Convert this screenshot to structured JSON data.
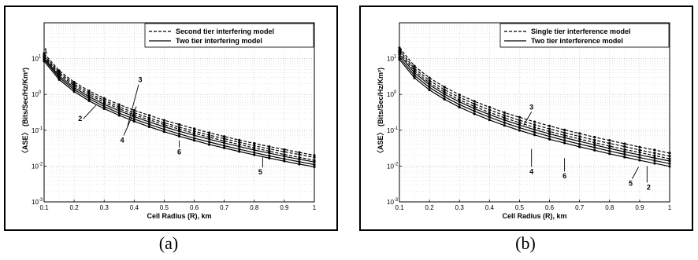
{
  "chart_data": [
    {
      "type": "line",
      "panel_caption": "(a)",
      "xlabel": "Cell Radius (R), km",
      "ylabel": "〈ASE〉 (Bits/Sec/Hz/Km²)",
      "xlim": [
        0.1,
        1
      ],
      "ylim": [
        0.001,
        100
      ],
      "yscale": "log",
      "grid": true,
      "legend_position": "top-right",
      "x_ticks": [
        "0.1",
        "0.2",
        "0.3",
        "0.4",
        "0.5",
        "0.6",
        "0.7",
        "0.8",
        "0.9",
        "1"
      ],
      "y_ticks": [
        {
          "base": "10",
          "exp": "-3"
        },
        {
          "base": "10",
          "exp": "-2"
        },
        {
          "base": "10",
          "exp": "-1"
        },
        {
          "base": "10",
          "exp": "0"
        },
        {
          "base": "10",
          "exp": "1"
        }
      ],
      "legend": [
        {
          "label": "Second tier interfering model",
          "style": "dashed"
        },
        {
          "label": "Two tier interfering model",
          "style": "solid"
        }
      ],
      "x": [
        0.1,
        0.15,
        0.2,
        0.25,
        0.3,
        0.35,
        0.4,
        0.45,
        0.5,
        0.55,
        0.6,
        0.65,
        0.7,
        0.75,
        0.8,
        0.85,
        0.9,
        0.95,
        1.0
      ],
      "series": [
        {
          "style": "dashed",
          "values": [
            14,
            4.6,
            2.2,
            1.25,
            0.78,
            0.52,
            0.36,
            0.26,
            0.19,
            0.145,
            0.11,
            0.085,
            0.067,
            0.053,
            0.043,
            0.035,
            0.029,
            0.024,
            0.02
          ]
        },
        {
          "style": "dashed",
          "values": [
            12.5,
            4.1,
            1.95,
            1.1,
            0.68,
            0.45,
            0.31,
            0.22,
            0.162,
            0.122,
            0.094,
            0.073,
            0.058,
            0.046,
            0.037,
            0.03,
            0.025,
            0.021,
            0.0175
          ]
        },
        {
          "style": "dashed",
          "values": [
            11.5,
            3.7,
            1.75,
            0.98,
            0.6,
            0.4,
            0.27,
            0.195,
            0.143,
            0.107,
            0.082,
            0.064,
            0.05,
            0.04,
            0.032,
            0.026,
            0.021,
            0.0175,
            0.0145
          ]
        },
        {
          "style": "solid",
          "values": [
            10.5,
            3.3,
            1.55,
            0.86,
            0.53,
            0.35,
            0.24,
            0.17,
            0.125,
            0.094,
            0.072,
            0.056,
            0.044,
            0.035,
            0.028,
            0.023,
            0.0185,
            0.0155,
            0.013
          ]
        },
        {
          "style": "solid",
          "values": [
            9.5,
            2.95,
            1.37,
            0.76,
            0.46,
            0.3,
            0.205,
            0.146,
            0.106,
            0.079,
            0.06,
            0.047,
            0.037,
            0.0295,
            0.0237,
            0.0193,
            0.0158,
            0.0132,
            0.011
          ]
        },
        {
          "style": "solid",
          "values": [
            8.5,
            2.6,
            1.2,
            0.66,
            0.4,
            0.26,
            0.177,
            0.125,
            0.091,
            0.068,
            0.052,
            0.04,
            0.032,
            0.0255,
            0.0205,
            0.0167,
            0.0137,
            0.0113,
            0.0095
          ]
        }
      ],
      "annotations": [
        {
          "text": "1",
          "x": 0.105,
          "y": 14
        },
        {
          "text": "2",
          "x": 0.22,
          "y": 0.18
        },
        {
          "text": "3",
          "x": 0.42,
          "y": 2.2
        },
        {
          "text": "4",
          "x": 0.36,
          "y": 0.045
        },
        {
          "text": "5",
          "x": 0.82,
          "y": 0.0058
        },
        {
          "text": "6",
          "x": 0.55,
          "y": 0.021
        }
      ]
    },
    {
      "type": "line",
      "panel_caption": "(b)",
      "xlabel": "Cell Radius (R), km",
      "ylabel": "〈ASE〉 (Bits/Sec/Hz/Km²)",
      "xlim": [
        0.1,
        1
      ],
      "ylim": [
        0.001,
        100
      ],
      "yscale": "log",
      "grid": true,
      "legend_position": "top-right",
      "x_ticks": [
        "0.1",
        "0.2",
        "0.3",
        "0.4",
        "0.5",
        "0.6",
        "0.7",
        "0.8",
        "0.9",
        "1"
      ],
      "y_ticks": [
        {
          "base": "10",
          "exp": "-3"
        },
        {
          "base": "10",
          "exp": "-2"
        },
        {
          "base": "10",
          "exp": "-1"
        },
        {
          "base": "10",
          "exp": "0"
        },
        {
          "base": "10",
          "exp": "1"
        }
      ],
      "legend": [
        {
          "label": "Single tier interference model",
          "style": "dashed"
        },
        {
          "label": "Two tier interference model",
          "style": "solid"
        }
      ],
      "x": [
        0.1,
        0.15,
        0.2,
        0.25,
        0.3,
        0.35,
        0.4,
        0.45,
        0.5,
        0.55,
        0.6,
        0.65,
        0.7,
        0.75,
        0.8,
        0.85,
        0.9,
        0.95,
        1.0
      ],
      "series": [
        {
          "style": "dashed",
          "values": [
            20,
            6.2,
            2.9,
            1.6,
            0.98,
            0.64,
            0.44,
            0.31,
            0.23,
            0.172,
            0.132,
            0.102,
            0.081,
            0.064,
            0.052,
            0.042,
            0.034,
            0.028,
            0.023
          ]
        },
        {
          "style": "dashed",
          "values": [
            17,
            5.3,
            2.45,
            1.35,
            0.83,
            0.54,
            0.37,
            0.26,
            0.19,
            0.143,
            0.109,
            0.085,
            0.067,
            0.053,
            0.043,
            0.035,
            0.028,
            0.023,
            0.019
          ]
        },
        {
          "style": "dashed",
          "values": [
            15,
            4.6,
            2.1,
            1.16,
            0.71,
            0.46,
            0.315,
            0.222,
            0.162,
            0.121,
            0.092,
            0.072,
            0.057,
            0.045,
            0.036,
            0.029,
            0.024,
            0.0195,
            0.016
          ]
        },
        {
          "style": "solid",
          "values": [
            13,
            4.0,
            1.85,
            1.01,
            0.62,
            0.4,
            0.272,
            0.192,
            0.14,
            0.104,
            0.079,
            0.062,
            0.049,
            0.039,
            0.031,
            0.025,
            0.0205,
            0.0168,
            0.0138
          ]
        },
        {
          "style": "solid",
          "values": [
            11,
            3.4,
            1.57,
            0.86,
            0.52,
            0.34,
            0.231,
            0.162,
            0.118,
            0.088,
            0.067,
            0.052,
            0.041,
            0.033,
            0.0262,
            0.0212,
            0.0173,
            0.0142,
            0.0117
          ]
        },
        {
          "style": "solid",
          "values": [
            9.5,
            2.9,
            1.33,
            0.73,
            0.44,
            0.286,
            0.194,
            0.136,
            0.099,
            0.074,
            0.056,
            0.044,
            0.0345,
            0.0276,
            0.022,
            0.0178,
            0.0145,
            0.0119,
            0.0098
          ]
        }
      ],
      "annotations": [
        {
          "text": "1",
          "x": 0.105,
          "y": 14
        },
        {
          "text": "2",
          "x": 0.93,
          "y": 0.0022
        },
        {
          "text": "3",
          "x": 0.54,
          "y": 0.38
        },
        {
          "text": "4",
          "x": 0.54,
          "y": 0.006
        },
        {
          "text": "5",
          "x": 0.87,
          "y": 0.0028
        },
        {
          "text": "6",
          "x": 0.65,
          "y": 0.0045
        }
      ]
    }
  ]
}
